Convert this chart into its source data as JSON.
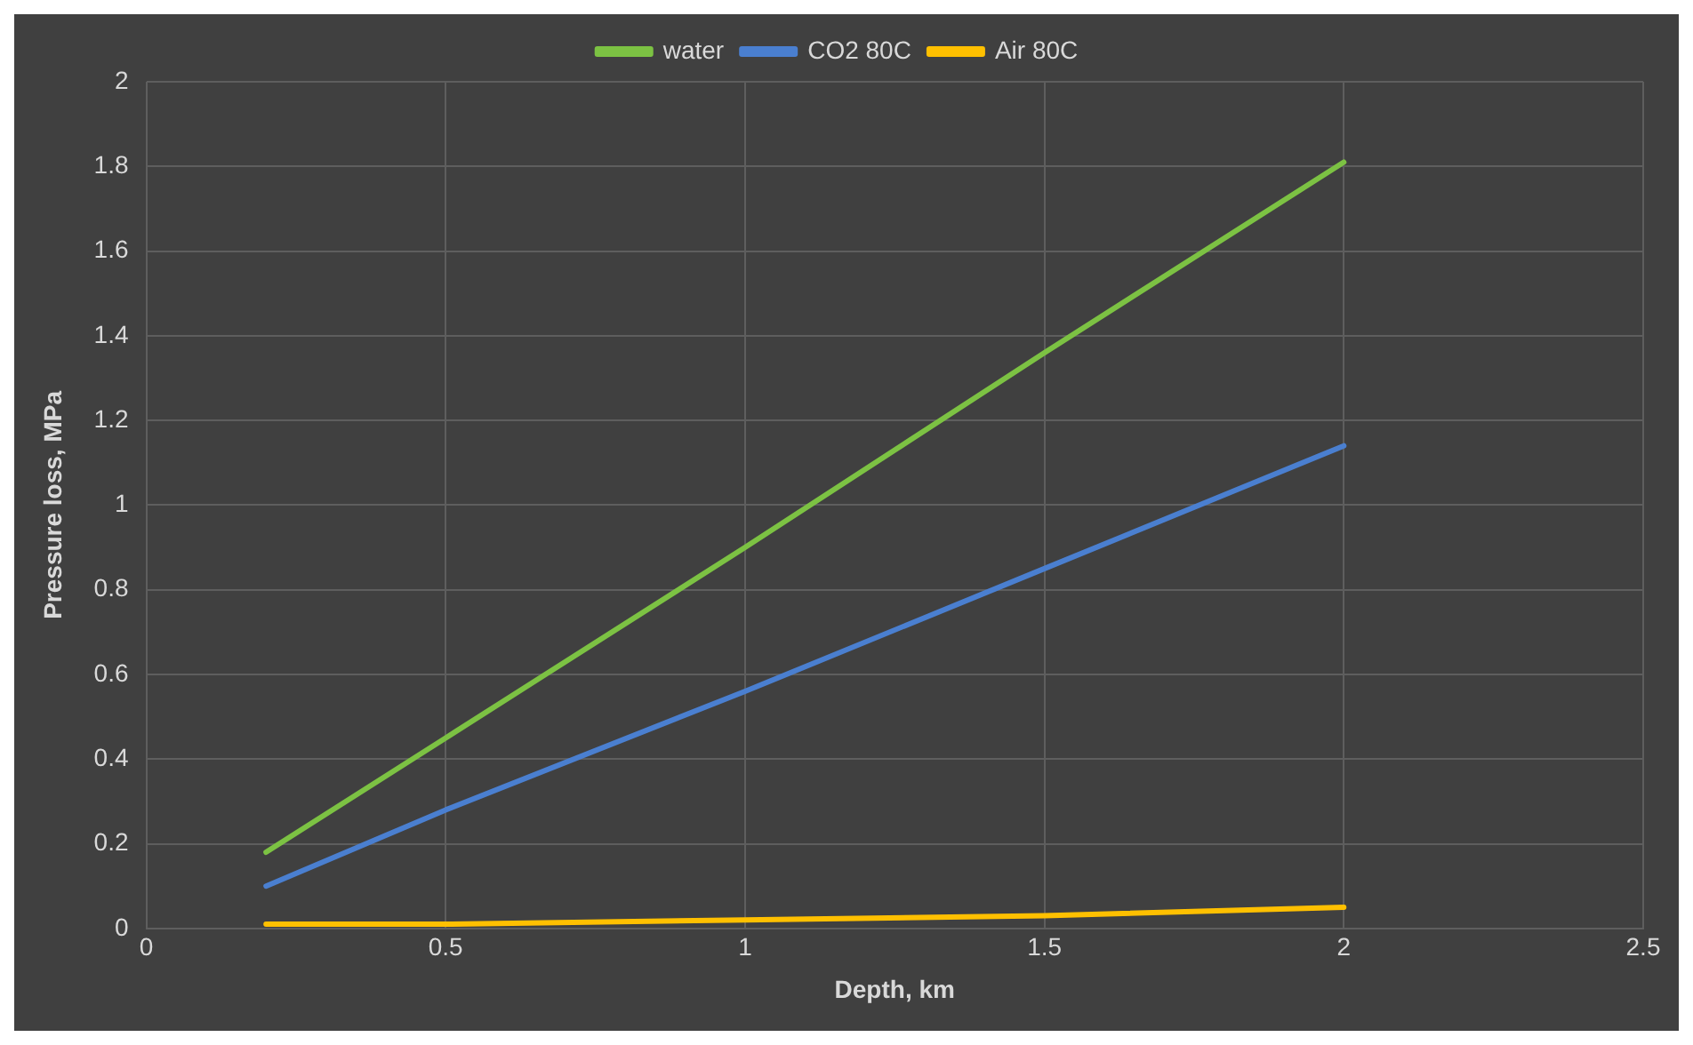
{
  "chart_data": {
    "type": "line",
    "xlabel": "Depth, km",
    "ylabel": "Pressure loss, MPa",
    "x": [
      0.2,
      0.5,
      1,
      1.5,
      2
    ],
    "series": [
      {
        "name": "water",
        "color": "#7cc243",
        "values": [
          0.18,
          0.45,
          0.9,
          1.36,
          1.81
        ]
      },
      {
        "name": "CO2 80C",
        "color": "#4a7fd0",
        "values": [
          0.1,
          0.28,
          0.56,
          0.85,
          1.14
        ]
      },
      {
        "name": "Air 80C",
        "color": "#ffc000",
        "values": [
          0.01,
          0.01,
          0.02,
          0.03,
          0.05
        ]
      }
    ],
    "xlim": [
      0,
      2.5
    ],
    "xticks": [
      0,
      0.5,
      1,
      1.5,
      2,
      2.5
    ],
    "ylim": [
      0,
      2
    ],
    "yticks": [
      0,
      0.2,
      0.4,
      0.6,
      0.8,
      1,
      1.2,
      1.4,
      1.6,
      1.8,
      2
    ],
    "grid": true,
    "legend": "top",
    "marker": "none",
    "line_style": "solid"
  }
}
